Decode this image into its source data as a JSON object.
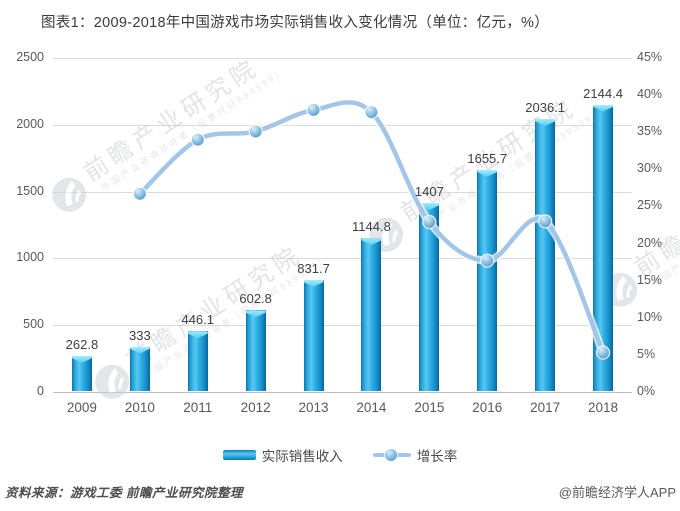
{
  "title": "图表1：2009-2018年中国游戏市场实际销售收入变化情况（单位：亿元，%）",
  "chart_data": {
    "type": "bar",
    "subtype": "bar+line combo, dual axis",
    "title": "图表1：2009-2018年中国游戏市场实际销售收入变化情况（单位：亿元，%）",
    "categories": [
      "2009",
      "2010",
      "2011",
      "2012",
      "2013",
      "2014",
      "2015",
      "2016",
      "2017",
      "2018"
    ],
    "series": [
      {
        "name": "实际销售收入",
        "type": "bar",
        "axis": "left",
        "unit": "亿元",
        "values": [
          262.8,
          333,
          446.1,
          602.8,
          831.7,
          1144.8,
          1407,
          1655.7,
          2036.1,
          2144.4
        ],
        "labels": [
          "262.8",
          "333",
          "446.1",
          "602.8",
          "831.7",
          "1144.8",
          "1407",
          "1655.7",
          "2036.1",
          "2144.4"
        ]
      },
      {
        "name": "增长率",
        "type": "line",
        "axis": "right",
        "unit": "%",
        "values": [
          null,
          26.7,
          34.0,
          35.1,
          38.0,
          37.7,
          22.9,
          17.7,
          23.0,
          5.3
        ]
      }
    ],
    "left_axis": {
      "min": 0,
      "max": 2500,
      "step": 500,
      "ticks": [
        "0",
        "500",
        "1000",
        "1500",
        "2000",
        "2500"
      ]
    },
    "right_axis": {
      "min": 0,
      "max": 45,
      "step": 5,
      "ticks": [
        "0%",
        "5%",
        "10%",
        "15%",
        "20%",
        "25%",
        "30%",
        "35%",
        "40%",
        "45%"
      ]
    },
    "grid": true,
    "legend_position": "bottom"
  },
  "legend": {
    "bar_label": "实际销售收入",
    "line_label": "增长率"
  },
  "footer": {
    "source": "资料来源：游戏工委  前瞻产业研究院整理",
    "credit": "@前瞻经济学人APP"
  },
  "watermark": {
    "main": "前瞻产业研究院",
    "sub": "中国产业咨询领导者（股票代码839599）"
  },
  "colors": {
    "bar_main": "#1D9ED9",
    "bar_edge": "#0B6FA4",
    "bar_highlight": "#56C8F3",
    "bar_cap": "#7FE0FA",
    "line": "#A3C6E8",
    "marker": "#7CB8E0",
    "grid": "#DBDBDB",
    "axis_text": "#595959",
    "label_text": "#3F3F3F",
    "title_text": "#3A3A3A",
    "watermark": "#C9CDD2"
  }
}
